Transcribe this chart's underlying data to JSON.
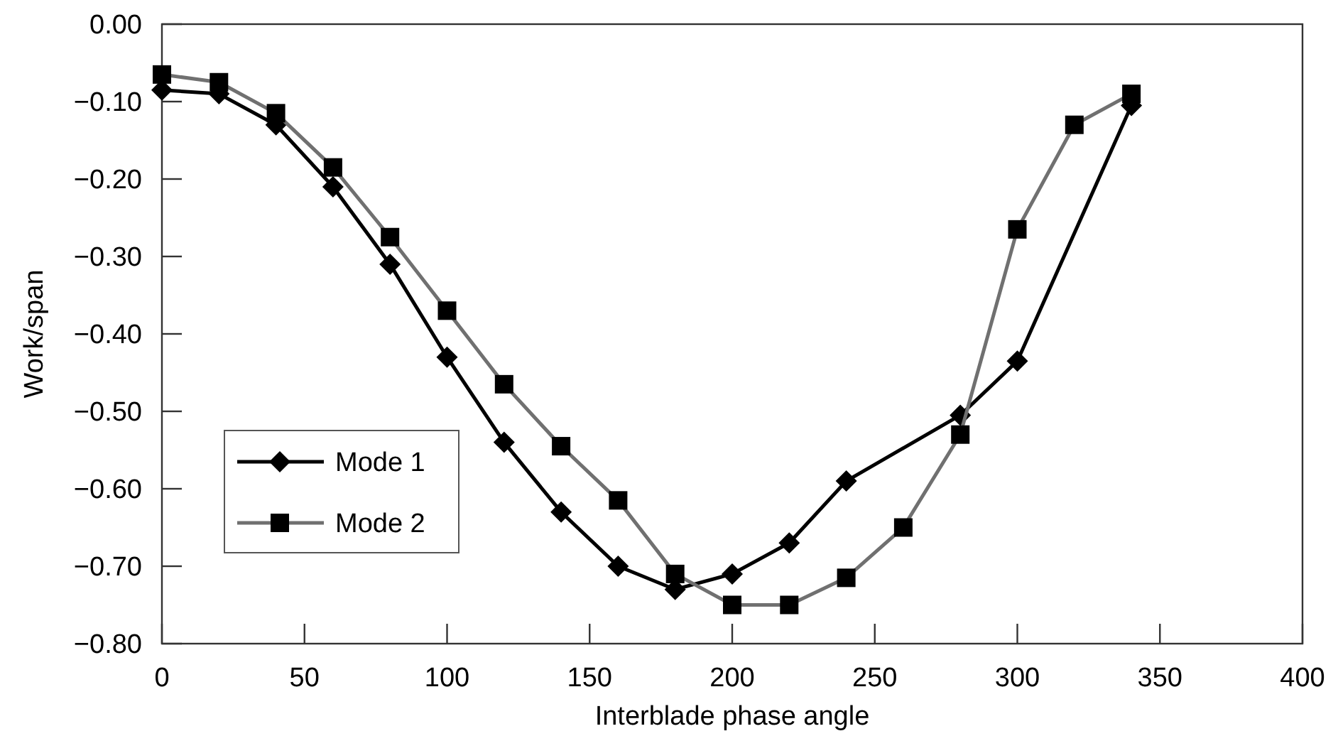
{
  "chart_data": {
    "type": "line",
    "xlabel": "Interblade phase angle",
    "ylabel": "Work/span",
    "xlim": [
      0,
      400
    ],
    "xticks": [
      0,
      50,
      100,
      150,
      200,
      250,
      300,
      350,
      400
    ],
    "ylim": [
      -0.8,
      0
    ],
    "yticks": [
      {
        "value": -0.8,
        "label": "−0.80"
      },
      {
        "value": -0.7,
        "label": "−0.70"
      },
      {
        "value": -0.6,
        "label": "−0.60"
      },
      {
        "value": -0.5,
        "label": "−0.50"
      },
      {
        "value": -0.4,
        "label": "−0.40"
      },
      {
        "value": -0.3,
        "label": "−0.30"
      },
      {
        "value": -0.2,
        "label": "−0.20"
      },
      {
        "value": -0.1,
        "label": "−0.10"
      },
      {
        "value": 0,
        "label": "0.00"
      }
    ],
    "grid": false,
    "legend": "bottom left",
    "line_style": "solid",
    "series": [
      {
        "name": "Mode 1",
        "color": "#000000",
        "marker": "diamond",
        "x": [
          0,
          20,
          40,
          60,
          80,
          100,
          120,
          140,
          160,
          180,
          200,
          220,
          240,
          280,
          300,
          340
        ],
        "values": [
          -0.085,
          -0.09,
          -0.13,
          -0.21,
          -0.31,
          -0.43,
          -0.54,
          -0.63,
          -0.7,
          -0.73,
          -0.71,
          -0.67,
          -0.59,
          -0.505,
          -0.435,
          -0.105
        ]
      },
      {
        "name": "Mode 2",
        "color": "#707070",
        "marker": "square",
        "x": [
          0,
          20,
          40,
          60,
          80,
          100,
          120,
          140,
          160,
          180,
          200,
          220,
          240,
          260,
          280,
          300,
          320,
          340
        ],
        "values": [
          -0.065,
          -0.075,
          -0.115,
          -0.185,
          -0.275,
          -0.37,
          -0.465,
          -0.545,
          -0.615,
          -0.71,
          -0.75,
          -0.75,
          -0.715,
          -0.65,
          -0.53,
          -0.265,
          -0.13,
          -0.09
        ]
      }
    ]
  }
}
